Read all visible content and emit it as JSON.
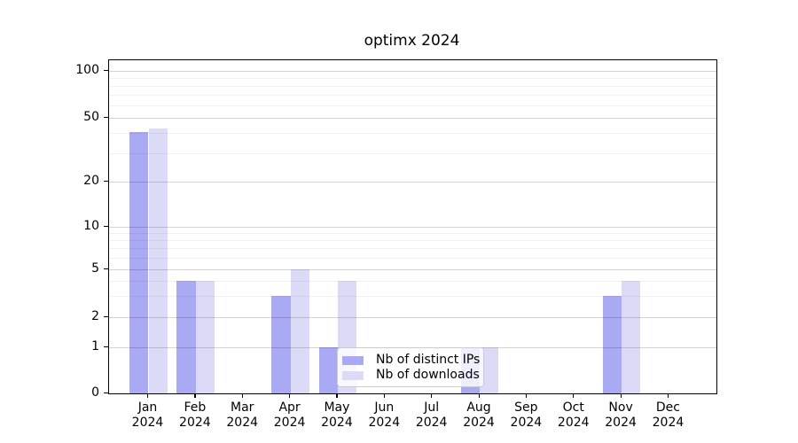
{
  "chart_data": {
    "type": "bar",
    "title": "optimx 2024",
    "categories": [
      "Jan",
      "Feb",
      "Mar",
      "Apr",
      "May",
      "Jun",
      "Jul",
      "Aug",
      "Sep",
      "Oct",
      "Nov",
      "Dec"
    ],
    "category_year": "2024",
    "series": [
      {
        "name": "Nb of distinct IPs",
        "color": "#a9a9f4",
        "values": [
          41,
          4,
          0,
          3,
          1,
          0,
          0,
          1,
          0,
          0,
          3,
          0
        ]
      },
      {
        "name": "Nb of downloads",
        "color": "#dbdbf7",
        "values": [
          43,
          4,
          0,
          5,
          4,
          0,
          0,
          1,
          0,
          0,
          4,
          0
        ]
      }
    ],
    "yscale": "log-like",
    "ytick_values": [
      100,
      50,
      20,
      10,
      5,
      2,
      1,
      0
    ],
    "ytick_labels": [
      "100",
      "50",
      "20",
      "10",
      "5",
      "2",
      "1",
      "0"
    ],
    "major_grid_values": [
      1,
      2,
      5,
      10,
      20,
      50,
      100
    ],
    "minor_grid_values": [
      3,
      4,
      6,
      7,
      8,
      9,
      30,
      40,
      60,
      70,
      80,
      90
    ],
    "ylim": [
      0,
      120
    ],
    "legend_position": "lower center",
    "grid": "on"
  }
}
